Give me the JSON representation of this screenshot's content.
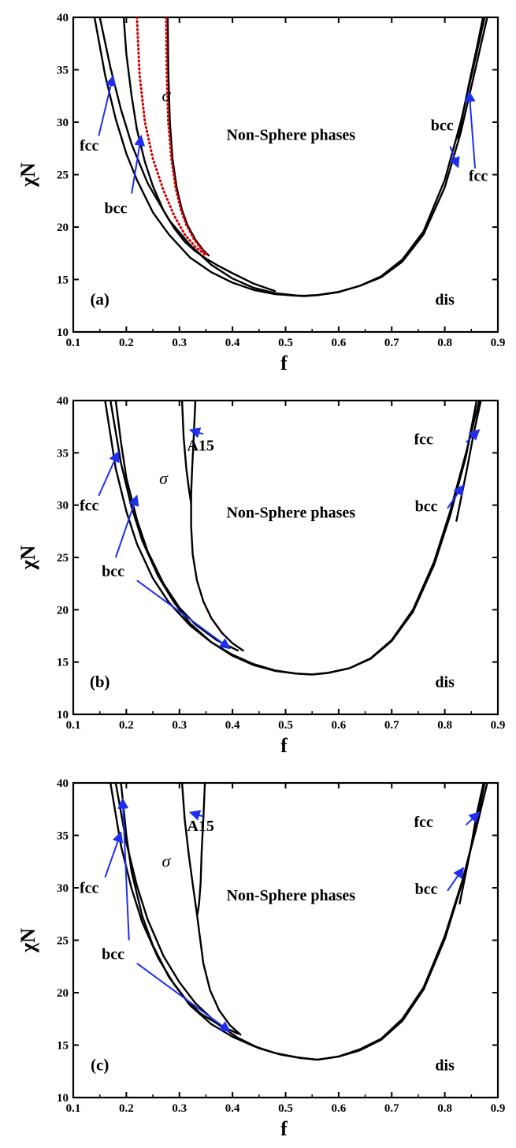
{
  "chart_data": [
    {
      "type": "line",
      "panel": "(a)",
      "xlabel": "f",
      "ylabel": "χN",
      "xlim": [
        0.1,
        0.9
      ],
      "ylim": [
        10,
        40
      ],
      "xticks": [
        "0.1",
        "0.2",
        "0.3",
        "0.4",
        "0.5",
        "0.6",
        "0.7",
        "0.8",
        "0.9"
      ],
      "yticks": [
        "10",
        "15",
        "20",
        "25",
        "30",
        "35",
        "40"
      ],
      "grid": false,
      "series": [
        {
          "color": "#000000",
          "style": "solid",
          "x": [
            0.14,
            0.16,
            0.18,
            0.2,
            0.22,
            0.25,
            0.28,
            0.32,
            0.36,
            0.4,
            0.44,
            0.48,
            0.52,
            0.535,
            0.56,
            0.6,
            0.64,
            0.68,
            0.72,
            0.76,
            0.8,
            0.83,
            0.855,
            0.875
          ],
          "y": [
            40,
            34.5,
            30.3,
            27.0,
            24.5,
            21.4,
            19.3,
            17.1,
            15.7,
            14.7,
            14.0,
            13.6,
            13.45,
            13.42,
            13.5,
            13.8,
            14.4,
            15.3,
            16.9,
            19.6,
            24.5,
            30.0,
            35.5,
            40
          ]
        },
        {
          "color": "#000000",
          "style": "solid",
          "x": [
            0.15,
            0.17,
            0.19,
            0.21,
            0.24,
            0.28,
            0.32,
            0.36,
            0.4,
            0.44,
            0.48,
            0.52,
            0.535,
            0.56,
            0.6,
            0.64,
            0.68,
            0.72,
            0.76,
            0.8,
            0.83,
            0.855,
            0.88
          ],
          "y": [
            40,
            35.2,
            31.2,
            27.9,
            24.2,
            20.7,
            18.3,
            16.4,
            15.1,
            14.2,
            13.7,
            13.48,
            13.45,
            13.52,
            13.82,
            14.4,
            15.2,
            16.7,
            19.3,
            23.8,
            29.0,
            34.5,
            40
          ]
        },
        {
          "color": "#000000",
          "style": "solid",
          "x": [
            0.195,
            0.2,
            0.21,
            0.22,
            0.235,
            0.25,
            0.27,
            0.29,
            0.31,
            0.33,
            0.35,
            0.37,
            0.4,
            0.44,
            0.48
          ],
          "y": [
            40,
            36.5,
            32.5,
            29.3,
            26.2,
            23.9,
            21.6,
            19.9,
            18.6,
            17.7,
            17.0,
            16.4,
            15.6,
            14.6,
            13.9
          ]
        },
        {
          "color": "#000000",
          "style": "solid",
          "x": [
            0.278,
            0.279,
            0.282,
            0.287,
            0.295,
            0.305,
            0.315,
            0.33,
            0.345,
            0.355
          ],
          "y": [
            40,
            35.0,
            30.0,
            26.5,
            23.7,
            21.6,
            20.2,
            18.8,
            17.8,
            17.3
          ]
        },
        {
          "color": "#000000",
          "style": "solid",
          "x": [
            0.825,
            0.835,
            0.845,
            0.86,
            0.872
          ],
          "y": [
            28.5,
            31.0,
            33.5,
            37.0,
            40
          ]
        },
        {
          "color": "#d00000",
          "style": "dotted",
          "x": [
            0.22,
            0.225,
            0.235,
            0.25,
            0.27,
            0.29,
            0.31,
            0.33,
            0.35
          ],
          "y": [
            40,
            34.5,
            30.0,
            26.5,
            23.5,
            21.1,
            19.3,
            18.1,
            17.3
          ]
        },
        {
          "color": "#d00000",
          "style": "dotted",
          "x": [
            0.275,
            0.276,
            0.279,
            0.285,
            0.293,
            0.303,
            0.313,
            0.328,
            0.343,
            0.352
          ],
          "y": [
            40,
            35.0,
            30.0,
            26.5,
            23.7,
            21.6,
            20.2,
            18.8,
            17.8,
            17.4
          ]
        }
      ],
      "labels": [
        {
          "text": "σ",
          "x": 0.275,
          "y": 32.0,
          "italic": true
        },
        {
          "text": "Non-Sphere phases",
          "x": 0.51,
          "y": 28.3
        },
        {
          "text": "fcc",
          "x": 0.13,
          "y": 27.3
        },
        {
          "text": "bcc",
          "x": 0.18,
          "y": 21.3
        },
        {
          "text": "bcc",
          "x": 0.795,
          "y": 29.2
        },
        {
          "text": "fcc",
          "x": 0.863,
          "y": 24.4
        },
        {
          "text": "dis",
          "x": 0.8,
          "y": 12.6
        },
        {
          "text": "(a)",
          "x": 0.15,
          "y": 12.6
        }
      ],
      "arrows": [
        {
          "from": [
            0.148,
            28.7
          ],
          "to": [
            0.175,
            34.4
          ]
        },
        {
          "from": [
            0.21,
            23.2
          ],
          "to": [
            0.228,
            28.7
          ]
        },
        {
          "from": [
            0.81,
            27.7
          ],
          "to": [
            0.825,
            25.7
          ]
        },
        {
          "from": [
            0.857,
            25.6
          ],
          "to": [
            0.846,
            32.9
          ]
        }
      ]
    },
    {
      "type": "line",
      "panel": "(b)",
      "xlabel": "f",
      "ylabel": "χN",
      "xlim": [
        0.1,
        0.9
      ],
      "ylim": [
        10,
        40
      ],
      "xticks": [
        "0.1",
        "0.2",
        "0.3",
        "0.4",
        "0.5",
        "0.6",
        "0.7",
        "0.8",
        "0.9"
      ],
      "yticks": [
        "10",
        "15",
        "20",
        "25",
        "30",
        "35",
        "40"
      ],
      "grid": false,
      "series": [
        {
          "color": "#000000",
          "style": "solid",
          "x": [
            0.16,
            0.18,
            0.2,
            0.22,
            0.25,
            0.28,
            0.32,
            0.36,
            0.4,
            0.44,
            0.48,
            0.52,
            0.55,
            0.58,
            0.62,
            0.66,
            0.7,
            0.74,
            0.78,
            0.81,
            0.84,
            0.86
          ],
          "y": [
            40,
            33.5,
            29.4,
            26.3,
            23.0,
            20.7,
            18.5,
            16.9,
            15.7,
            14.8,
            14.2,
            13.9,
            13.8,
            13.95,
            14.4,
            15.3,
            17.0,
            19.8,
            24.3,
            29.0,
            34.7,
            40
          ]
        },
        {
          "color": "#000000",
          "style": "solid",
          "x": [
            0.17,
            0.19,
            0.21,
            0.23,
            0.26,
            0.29,
            0.32,
            0.36,
            0.4,
            0.44,
            0.48,
            0.52,
            0.55,
            0.58,
            0.62,
            0.66,
            0.7,
            0.74,
            0.78,
            0.81,
            0.84,
            0.865
          ],
          "y": [
            40,
            34.0,
            29.8,
            26.6,
            23.2,
            20.7,
            18.7,
            16.9,
            15.6,
            14.7,
            14.15,
            13.9,
            13.82,
            13.97,
            14.4,
            15.35,
            17.1,
            20.0,
            24.6,
            29.4,
            35.0,
            40
          ]
        },
        {
          "color": "#000000",
          "style": "solid",
          "x": [
            0.18,
            0.19,
            0.2,
            0.22,
            0.24,
            0.27,
            0.3,
            0.33,
            0.37,
            0.41
          ],
          "y": [
            40,
            36.0,
            32.6,
            28.6,
            25.6,
            22.5,
            20.2,
            18.6,
            17.1,
            16.1
          ]
        },
        {
          "color": "#000000",
          "style": "solid",
          "x": [
            0.822,
            0.832,
            0.842,
            0.855,
            0.868
          ],
          "y": [
            28.5,
            31.0,
            33.5,
            37.0,
            40
          ]
        },
        {
          "color": "#000000",
          "style": "solid",
          "x": [
            0.305,
            0.308,
            0.313,
            0.318,
            0.322
          ],
          "y": [
            40,
            36.5,
            33.5,
            31.5,
            30.2
          ]
        },
        {
          "color": "#000000",
          "style": "solid",
          "x": [
            0.33,
            0.327,
            0.324,
            0.322,
            0.322,
            0.325,
            0.333,
            0.345,
            0.36,
            0.38,
            0.4,
            0.42
          ],
          "y": [
            40,
            36.5,
            33.5,
            31.0,
            28.0,
            25.3,
            22.8,
            20.8,
            19.2,
            17.8,
            16.8,
            16.1
          ]
        }
      ],
      "labels": [
        {
          "text": "σ",
          "x": 0.27,
          "y": 32.0,
          "italic": true
        },
        {
          "text": "A15",
          "x": 0.34,
          "y": 35.2
        },
        {
          "text": "Non-Sphere phases",
          "x": 0.51,
          "y": 28.8
        },
        {
          "text": "fcc",
          "x": 0.13,
          "y": 29.5
        },
        {
          "text": "bcc",
          "x": 0.175,
          "y": 23.2
        },
        {
          "text": "fcc",
          "x": 0.76,
          "y": 35.8
        },
        {
          "text": "bcc",
          "x": 0.765,
          "y": 29.4
        },
        {
          "text": "dis",
          "x": 0.8,
          "y": 12.6
        },
        {
          "text": "(b)",
          "x": 0.15,
          "y": 12.6
        }
      ],
      "arrows": [
        {
          "from": [
            0.148,
            30.9
          ],
          "to": [
            0.185,
            35.1
          ]
        },
        {
          "from": [
            0.18,
            25.0
          ],
          "to": [
            0.22,
            30.9
          ]
        },
        {
          "from": [
            0.22,
            22.8
          ],
          "to": [
            0.395,
            16.3
          ]
        },
        {
          "from": [
            0.84,
            36.0
          ],
          "to": [
            0.865,
            37.2
          ]
        },
        {
          "from": [
            0.805,
            29.7
          ],
          "to": [
            0.835,
            31.9
          ]
        },
        {
          "from": [
            0.345,
            36.8
          ],
          "to": [
            0.32,
            37.2
          ]
        }
      ]
    },
    {
      "type": "line",
      "panel": "(c)",
      "xlabel": "f",
      "ylabel": "χN",
      "xlim": [
        0.1,
        0.9
      ],
      "ylim": [
        10,
        40
      ],
      "xticks": [
        "0.1",
        "0.2",
        "0.3",
        "0.4",
        "0.5",
        "0.6",
        "0.7",
        "0.8",
        "0.9"
      ],
      "yticks": [
        "10",
        "15",
        "20",
        "25",
        "30",
        "35",
        "40"
      ],
      "grid": false,
      "series": [
        {
          "color": "#000000",
          "style": "solid",
          "x": [
            0.17,
            0.19,
            0.21,
            0.23,
            0.26,
            0.29,
            0.32,
            0.36,
            0.4,
            0.44,
            0.48,
            0.52,
            0.56,
            0.6,
            0.64,
            0.68,
            0.72,
            0.76,
            0.8,
            0.83,
            0.855,
            0.875
          ],
          "y": [
            40,
            34.0,
            29.9,
            26.7,
            23.3,
            20.8,
            18.8,
            17.0,
            15.8,
            14.9,
            14.25,
            13.85,
            13.6,
            13.9,
            14.5,
            15.5,
            17.3,
            20.3,
            25.1,
            30.0,
            35.0,
            40
          ]
        },
        {
          "color": "#000000",
          "style": "solid",
          "x": [
            0.18,
            0.2,
            0.22,
            0.24,
            0.27,
            0.3,
            0.33,
            0.37,
            0.41,
            0.45,
            0.49,
            0.53,
            0.56,
            0.6,
            0.64,
            0.68,
            0.72,
            0.76,
            0.8,
            0.835,
            0.86,
            0.88
          ],
          "y": [
            40,
            34.3,
            30.2,
            27.0,
            23.5,
            21.0,
            19.0,
            17.1,
            15.7,
            14.7,
            14.1,
            13.75,
            13.62,
            13.92,
            14.6,
            15.6,
            17.5,
            20.5,
            25.4,
            31.0,
            35.8,
            40
          ]
        },
        {
          "color": "#000000",
          "style": "solid",
          "x": [
            0.19,
            0.195,
            0.2,
            0.21,
            0.23,
            0.25,
            0.28,
            0.31,
            0.34,
            0.38,
            0.41
          ],
          "y": [
            40,
            37.5,
            35.0,
            31.5,
            27.3,
            24.5,
            21.5,
            19.5,
            18.0,
            16.8,
            16.1
          ]
        },
        {
          "color": "#000000",
          "style": "solid",
          "x": [
            0.828,
            0.838,
            0.848,
            0.86,
            0.873
          ],
          "y": [
            28.5,
            31.0,
            33.5,
            37.0,
            40
          ]
        },
        {
          "color": "#000000",
          "style": "solid",
          "x": [
            0.305,
            0.31,
            0.318,
            0.326,
            0.333,
            0.338,
            0.345,
            0.358,
            0.375,
            0.395,
            0.415
          ],
          "y": [
            40,
            36.5,
            33.0,
            30.0,
            27.5,
            25.5,
            22.8,
            20.2,
            18.3,
            16.9,
            16.0
          ]
        },
        {
          "color": "#000000",
          "style": "solid",
          "x": [
            0.348,
            0.345,
            0.342,
            0.34,
            0.337,
            0.334
          ],
          "y": [
            40,
            36.5,
            33.5,
            30.5,
            28.5,
            27.5
          ]
        }
      ],
      "labels": [
        {
          "text": "σ",
          "x": 0.275,
          "y": 32.0,
          "italic": true
        },
        {
          "text": "A15",
          "x": 0.34,
          "y": 35.4
        },
        {
          "text": "Non-Sphere phases",
          "x": 0.51,
          "y": 28.8
        },
        {
          "text": "fcc",
          "x": 0.13,
          "y": 29.5
        },
        {
          "text": "bcc",
          "x": 0.175,
          "y": 23.2
        },
        {
          "text": "fcc",
          "x": 0.76,
          "y": 35.8
        },
        {
          "text": "bcc",
          "x": 0.765,
          "y": 29.4
        },
        {
          "text": "dis",
          "x": 0.8,
          "y": 12.6
        },
        {
          "text": "(c)",
          "x": 0.15,
          "y": 12.6
        }
      ],
      "arrows": [
        {
          "from": [
            0.16,
            31.0
          ],
          "to": [
            0.19,
            35.3
          ]
        },
        {
          "from": [
            0.205,
            25.0
          ],
          "to": [
            0.193,
            38.5
          ]
        },
        {
          "from": [
            0.22,
            22.8
          ],
          "to": [
            0.395,
            16.3
          ]
        },
        {
          "from": [
            0.84,
            36.0
          ],
          "to": [
            0.865,
            37.2
          ]
        },
        {
          "from": [
            0.805,
            29.7
          ],
          "to": [
            0.835,
            31.9
          ]
        },
        {
          "from": [
            0.345,
            36.8
          ],
          "to": [
            0.32,
            37.2
          ]
        }
      ]
    }
  ]
}
